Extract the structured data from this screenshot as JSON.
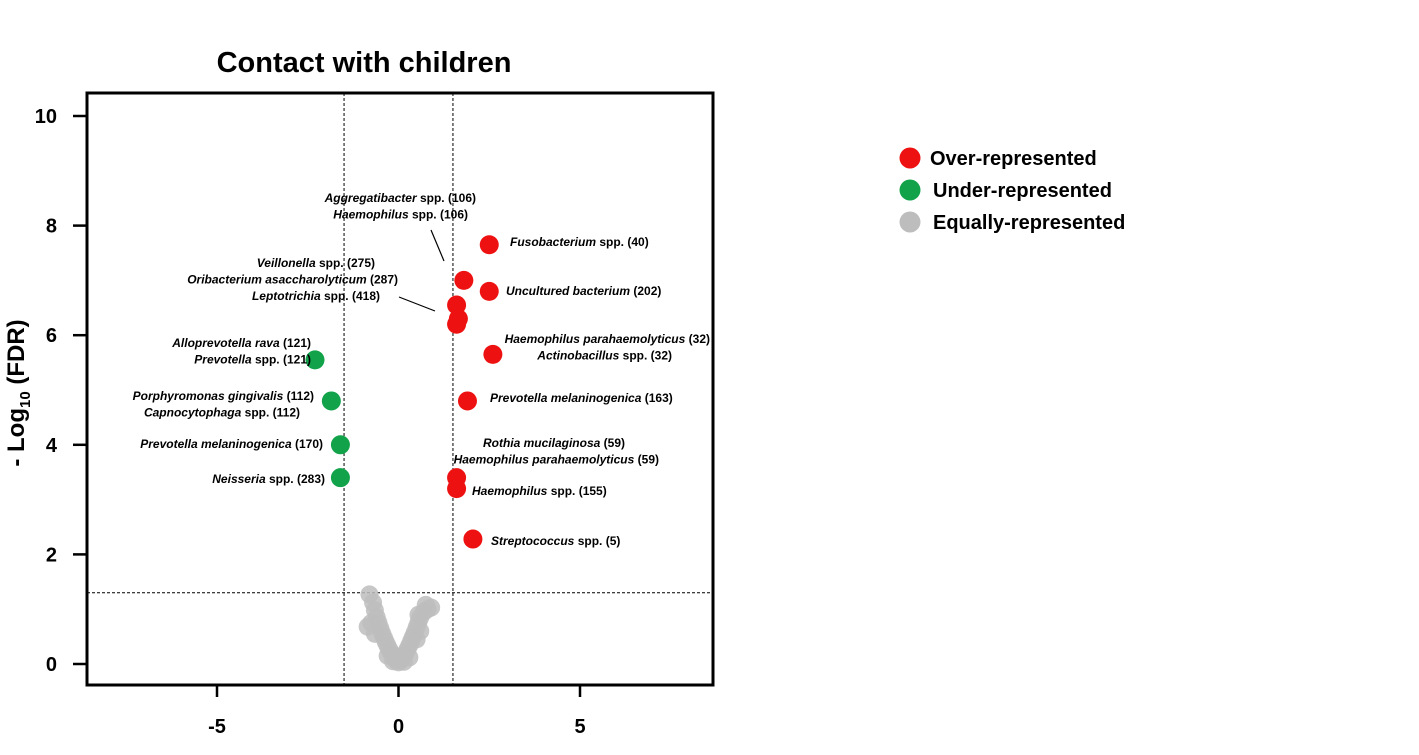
{
  "chart_data": {
    "type": "scatter",
    "title": "Contact with children",
    "ylabel": {
      "prefix": "- Log",
      "sub": "10",
      "suffix": " (FDR)"
    },
    "xlabel": "",
    "xlim": [
      -8.5,
      8.5
    ],
    "ylim": [
      -0.4,
      10.4
    ],
    "xticks": [
      -5,
      0,
      5
    ],
    "yticks": [
      0,
      2,
      4,
      6,
      8,
      10
    ],
    "thresholds": {
      "x": [
        -1.5,
        1.5
      ],
      "y": 1.3
    },
    "colors": {
      "over": "#ee1111",
      "under": "#11a24a",
      "equal": "#bdbdbd"
    },
    "legend": {
      "placement": "right",
      "entries": [
        {
          "label": "Over-represented",
          "color": "#ee1111"
        },
        {
          "label": "Under-represented",
          "color": "#11a24a"
        },
        {
          "label": "Equally-represented",
          "color": "#bdbdbd"
        }
      ]
    },
    "series": [
      {
        "name": "Over-represented",
        "points": [
          {
            "x": 2.5,
            "y": 7.65,
            "label": [
              {
                "name": "Fusobacterium",
                "rest": " spp. (40)"
              }
            ]
          },
          {
            "x": 1.8,
            "y": 7.0
          },
          {
            "x": 2.5,
            "y": 6.8,
            "label": [
              {
                "name": "Uncultured bacterium",
                "rest": " (202)"
              }
            ]
          },
          {
            "x": 1.6,
            "y": 6.55
          },
          {
            "x": 1.65,
            "y": 6.3
          },
          {
            "x": 1.6,
            "y": 6.2
          },
          {
            "x": 2.6,
            "y": 5.65,
            "label": [
              {
                "name": "Haemophilus parahaemolyticus",
                "rest": " (32)"
              },
              {
                "name": "Actinobacillus",
                "rest": " spp. (32)"
              }
            ]
          },
          {
            "x": 1.9,
            "y": 4.8,
            "label": [
              {
                "name": "Prevotella melaninogenica",
                "rest": " (163)"
              }
            ]
          },
          {
            "x": 1.6,
            "y": 3.4,
            "label": [
              {
                "name": "Rothia mucilaginosa",
                "rest": " (59)"
              },
              {
                "name": "Haemophilus parahaemolyticus",
                "rest": " (59)"
              }
            ]
          },
          {
            "x": 1.6,
            "y": 3.2,
            "label": [
              {
                "name": "Haemophilus",
                "rest": " spp. (155)"
              }
            ]
          },
          {
            "x": 2.05,
            "y": 2.28,
            "label": [
              {
                "name": "Streptococcus",
                "rest": " spp. (5)"
              }
            ]
          }
        ]
      },
      {
        "name": "Under-represented",
        "points": [
          {
            "x": -2.3,
            "y": 5.55,
            "label": [
              {
                "name": "Alloprevotella rava",
                "rest": " (121)"
              },
              {
                "name": "Prevotella",
                "rest": " spp. (121)"
              }
            ]
          },
          {
            "x": -1.85,
            "y": 4.8,
            "label": [
              {
                "name": "Porphyromonas gingivalis",
                "rest": " (112)"
              },
              {
                "name": "Capnocytophaga",
                "rest": " spp. (112)"
              }
            ]
          },
          {
            "x": -1.6,
            "y": 4.0,
            "label": [
              {
                "name": "Prevotella melaninogenica",
                "rest": " (170)"
              }
            ]
          },
          {
            "x": -1.6,
            "y": 3.4,
            "label": [
              {
                "name": "Neisseria",
                "rest": " spp. (283)"
              }
            ]
          }
        ]
      },
      {
        "name": "Equally-represented",
        "points": [
          {
            "x": -0.8,
            "y": 1.27
          },
          {
            "x": -0.7,
            "y": 1.12
          },
          {
            "x": -0.65,
            "y": 0.98
          },
          {
            "x": -0.6,
            "y": 0.85
          },
          {
            "x": -0.55,
            "y": 0.75
          },
          {
            "x": -0.5,
            "y": 0.65
          },
          {
            "x": -0.45,
            "y": 0.56
          },
          {
            "x": -0.4,
            "y": 0.48
          },
          {
            "x": -0.35,
            "y": 0.4
          },
          {
            "x": -0.3,
            "y": 0.33
          },
          {
            "x": -0.25,
            "y": 0.26
          },
          {
            "x": -0.2,
            "y": 0.2
          },
          {
            "x": -0.15,
            "y": 0.15
          },
          {
            "x": -0.1,
            "y": 0.1
          },
          {
            "x": -0.05,
            "y": 0.06
          },
          {
            "x": 0.0,
            "y": 0.03
          },
          {
            "x": 0.05,
            "y": 0.06
          },
          {
            "x": 0.1,
            "y": 0.1
          },
          {
            "x": 0.15,
            "y": 0.15
          },
          {
            "x": 0.2,
            "y": 0.2
          },
          {
            "x": 0.25,
            "y": 0.27
          },
          {
            "x": 0.3,
            "y": 0.34
          },
          {
            "x": 0.35,
            "y": 0.42
          },
          {
            "x": 0.4,
            "y": 0.5
          },
          {
            "x": 0.45,
            "y": 0.58
          },
          {
            "x": 0.5,
            "y": 0.67
          },
          {
            "x": 0.55,
            "y": 0.76
          },
          {
            "x": 0.6,
            "y": 0.85
          },
          {
            "x": 0.7,
            "y": 0.95
          },
          {
            "x": 0.8,
            "y": 1.0
          },
          {
            "x": 0.9,
            "y": 1.03
          },
          {
            "x": 0.75,
            "y": 1.08
          },
          {
            "x": 0.55,
            "y": 0.9
          },
          {
            "x": -0.75,
            "y": 0.75
          },
          {
            "x": -0.85,
            "y": 0.68
          },
          {
            "x": -0.65,
            "y": 0.55
          },
          {
            "x": 0.6,
            "y": 0.6
          },
          {
            "x": 0.5,
            "y": 0.45
          },
          {
            "x": -0.3,
            "y": 0.15
          },
          {
            "x": 0.3,
            "y": 0.12
          },
          {
            "x": -0.15,
            "y": 0.05
          },
          {
            "x": 0.15,
            "y": 0.04
          }
        ]
      }
    ],
    "callouts": [
      {
        "lines": [
          {
            "name": "Aggregatibacter",
            "rest": " spp. (106)"
          },
          {
            "name": "Haemophilus",
            "rest": " spp. (106)"
          }
        ]
      },
      {
        "lines": [
          {
            "name": "Veillonella",
            "rest": " spp. (275)"
          },
          {
            "name": "Oribacterium asaccharolyticum",
            "rest": " (287)"
          },
          {
            "name": "Leptotrichia",
            "rest": " spp. (418)"
          }
        ]
      }
    ]
  }
}
